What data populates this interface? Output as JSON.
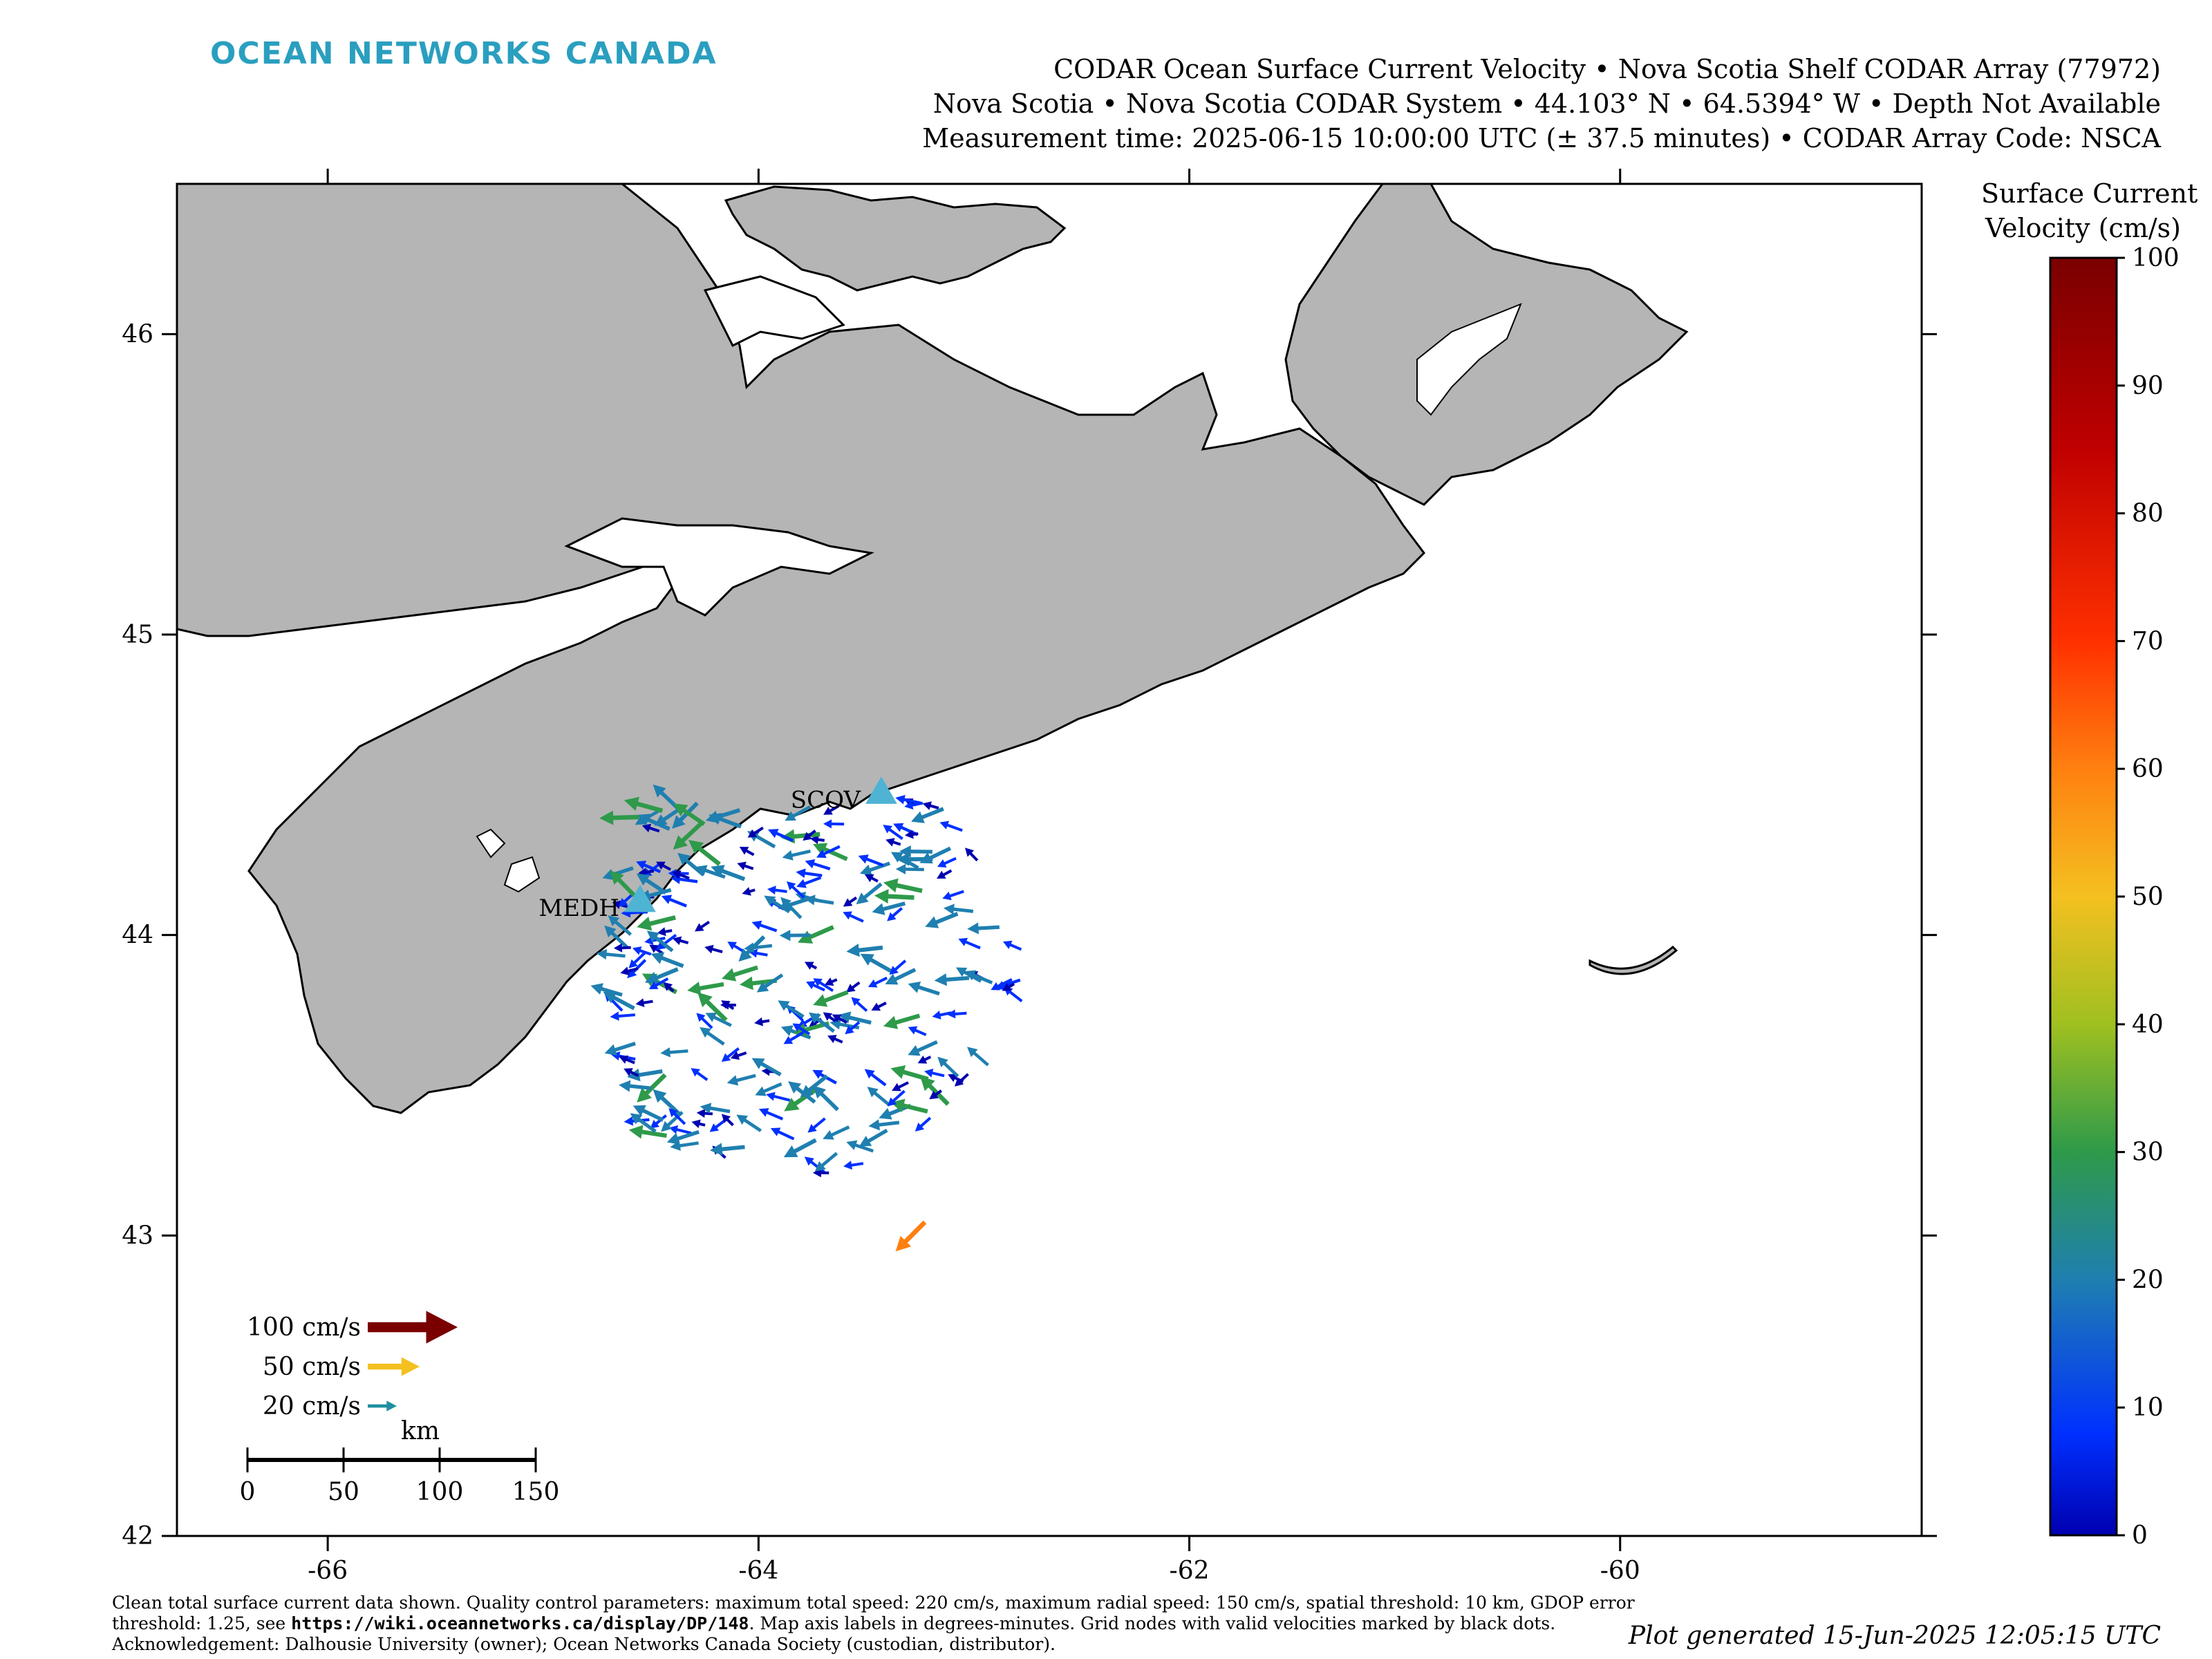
{
  "brand": "OCEAN NETWORKS CANADA",
  "title": {
    "line1": "CODAR Ocean Surface Current Velocity • Nova Scotia Shelf CODAR Array (77972)",
    "line2": "Nova Scotia • Nova Scotia CODAR System • 44.103° N • 64.5394° W • Depth Not Available",
    "line3": "Measurement time: 2025-06-15 10:00:00 UTC (± 37.5 minutes) • CODAR Array Code: NSCA"
  },
  "axes": {
    "x_ticks": [
      "-66",
      "-64",
      "-62",
      "-60"
    ],
    "y_ticks": [
      "46",
      "45",
      "44",
      "43",
      "42"
    ],
    "lon_range": [
      -66.7,
      -58.6
    ],
    "lat_range": [
      42.0,
      46.5
    ]
  },
  "stations": [
    {
      "name": "SCOV",
      "lon": -63.43,
      "lat": 44.47
    },
    {
      "name": "MEDH",
      "lon": -64.55,
      "lat": 44.11
    }
  ],
  "colorbar": {
    "title_line1": "Surface Current",
    "title_line2": "Velocity (cm/s)",
    "ticks": [
      "0",
      "10",
      "20",
      "30",
      "40",
      "50",
      "60",
      "70",
      "80",
      "90",
      "100"
    ],
    "range": [
      0,
      100
    ],
    "colors": [
      "#0000b0",
      "#0030ff",
      "#1f7fb0",
      "#2e9a4a",
      "#9fc020",
      "#f4c020",
      "#ff8010",
      "#ff3000",
      "#c00000",
      "#7a0000"
    ]
  },
  "vector_legend": [
    {
      "label": "100 cm/s",
      "speed": 100,
      "color": "#7a0000"
    },
    {
      "label": "50 cm/s",
      "speed": 50,
      "color": "#f4c020"
    },
    {
      "label": "20 cm/s",
      "speed": 20,
      "color": "#1f8fa0"
    }
  ],
  "scale_bar": {
    "unit": "km",
    "ticks": [
      "0",
      "50",
      "100",
      "150"
    ]
  },
  "footer": {
    "text_a": "Clean total surface current data shown. Quality control parameters: maximum total speed: 220 cm/s, maximum radial speed: 150 cm/s, spatial threshold: 10 km, GDOP error threshold: 1.25, see ",
    "link": "https://wiki.oceannetworks.ca/display/DP/148",
    "text_b": ". Map axis labels in degrees-minutes. Grid nodes with valid velocities marked by black dots. Acknowledgement: Dalhousie University (owner); Ocean Networks Canada Society (custodian, distributor)."
  },
  "generated": "Plot generated 15-Jun-2025 12:05:15 UTC"
}
